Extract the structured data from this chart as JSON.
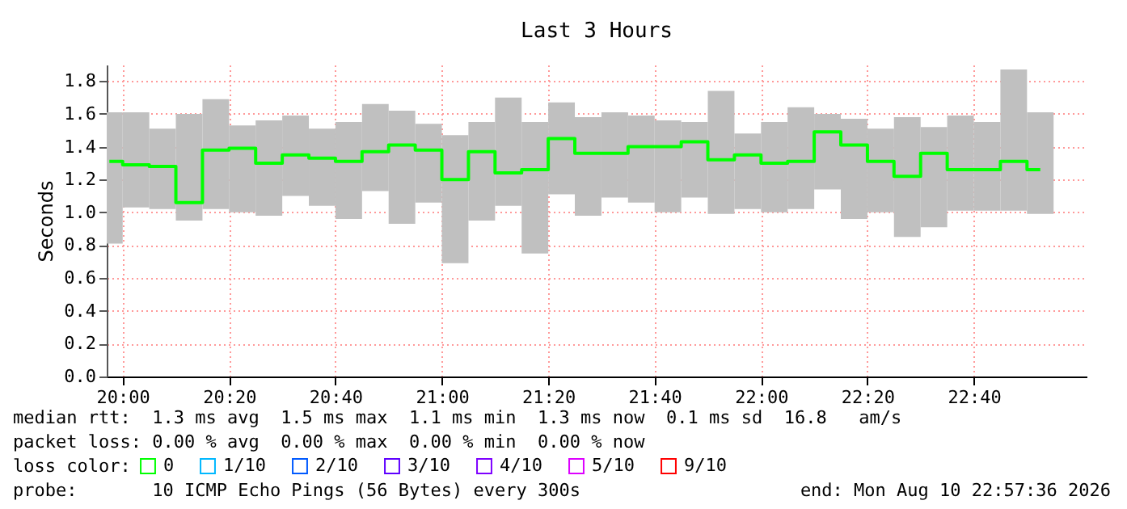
{
  "chart_data": {
    "type": "bar",
    "title": "Last 3 Hours",
    "ylabel": "Seconds",
    "legend_title": "loss color:",
    "x": [
      19.9583,
      20.0417,
      20.125,
      20.2083,
      20.2917,
      20.375,
      20.4583,
      20.5417,
      20.625,
      20.7083,
      20.7917,
      20.875,
      20.9583,
      21.0417,
      21.125,
      21.2083,
      21.2917,
      21.375,
      21.4583,
      21.5417,
      21.625,
      21.7083,
      21.7917,
      21.875,
      21.9583,
      22.0417,
      22.125,
      22.2083,
      22.2917,
      22.375,
      22.4583,
      22.5417,
      22.625,
      22.7083,
      22.7917,
      22.875
    ],
    "series": [
      {
        "color": "#c0c0c0",
        "base": [
          0.81,
          1.03,
          1.02,
          0.95,
          1.02,
          1.0,
          0.98,
          1.1,
          1.04,
          0.96,
          1.13,
          0.93,
          1.06,
          0.69,
          0.95,
          1.04,
          0.75,
          1.11,
          0.98,
          1.09,
          1.06,
          1.0,
          1.09,
          0.99,
          1.02,
          1.0,
          1.02,
          1.14,
          0.96,
          1.0,
          0.85,
          0.91,
          1.01,
          1.01,
          1.01,
          0.99
        ],
        "values": [
          0.8,
          0.58,
          0.49,
          0.65,
          0.67,
          0.53,
          0.58,
          0.49,
          0.47,
          0.59,
          0.53,
          0.69,
          0.48,
          0.78,
          0.6,
          0.66,
          0.8,
          0.56,
          0.6,
          0.52,
          0.53,
          0.56,
          0.46,
          0.75,
          0.46,
          0.55,
          0.62,
          0.46,
          0.61,
          0.51,
          0.73,
          0.61,
          0.58,
          0.54,
          0.86,
          0.62
        ]
      },
      {
        "type": "step",
        "name": "0",
        "color": "#00ff00",
        "values": [
          1.31,
          1.29,
          1.28,
          1.06,
          1.38,
          1.39,
          1.3,
          1.35,
          1.33,
          1.31,
          1.37,
          1.41,
          1.38,
          1.2,
          1.37,
          1.24,
          1.26,
          1.45,
          1.36,
          1.36,
          1.4,
          1.4,
          1.43,
          1.32,
          1.35,
          1.3,
          1.31,
          1.49,
          1.41,
          1.31,
          1.22,
          1.36,
          1.26,
          1.26,
          1.31,
          1.26
        ]
      },
      {
        "type": "step",
        "name": "1/10",
        "color": "#00b8ff",
        "values": [
          null,
          null,
          null,
          null,
          null,
          null,
          null,
          null,
          null,
          null,
          null,
          null,
          null,
          null,
          null,
          null,
          null,
          null,
          null,
          null,
          null,
          null,
          null,
          null,
          null,
          null,
          null,
          null,
          null,
          null,
          null,
          null,
          null,
          null,
          null,
          null
        ]
      },
      {
        "type": "step",
        "name": "2/10",
        "color": "#0059ff",
        "values": [
          null,
          null,
          null,
          null,
          null,
          null,
          null,
          null,
          null,
          null,
          null,
          null,
          null,
          null,
          null,
          null,
          null,
          null,
          null,
          null,
          null,
          null,
          null,
          null,
          null,
          null,
          null,
          null,
          null,
          null,
          null,
          null,
          null,
          null,
          null,
          null
        ]
      },
      {
        "type": "step",
        "name": "3/10",
        "color": "#5e00ff",
        "values": [
          null,
          null,
          null,
          null,
          null,
          null,
          null,
          null,
          null,
          null,
          null,
          null,
          null,
          null,
          null,
          null,
          null,
          null,
          null,
          null,
          null,
          null,
          null,
          null,
          null,
          null,
          null,
          null,
          null,
          null,
          null,
          null,
          null,
          null,
          null,
          null
        ]
      },
      {
        "type": "step",
        "name": "4/10",
        "color": "#7e00ff",
        "values": [
          null,
          null,
          null,
          null,
          null,
          null,
          null,
          null,
          null,
          null,
          null,
          null,
          null,
          null,
          null,
          null,
          null,
          null,
          null,
          null,
          null,
          null,
          null,
          null,
          null,
          null,
          null,
          null,
          null,
          null,
          null,
          null,
          null,
          null,
          null,
          null
        ]
      },
      {
        "type": "step",
        "name": "5/10",
        "color": "#dd00ff",
        "values": [
          null,
          null,
          null,
          null,
          null,
          null,
          null,
          null,
          null,
          null,
          null,
          null,
          null,
          null,
          null,
          null,
          null,
          null,
          null,
          null,
          null,
          null,
          null,
          null,
          null,
          null,
          null,
          null,
          null,
          null,
          null,
          null,
          null,
          null,
          null,
          null
        ]
      },
      {
        "type": "step",
        "name": "9/10",
        "color": "#ff0000",
        "values": [
          null,
          null,
          null,
          null,
          null,
          null,
          null,
          null,
          null,
          null,
          null,
          null,
          null,
          null,
          null,
          null,
          null,
          null,
          null,
          null,
          null,
          null,
          null,
          null,
          null,
          null,
          null,
          null,
          null,
          null,
          null,
          null,
          null,
          null,
          null,
          null
        ]
      }
    ],
    "xlim": [
      19.95,
      23.02
    ],
    "xticks": [
      {
        "value": 20,
        "label": "20:00"
      },
      {
        "value": 20.3333,
        "label": "20:20"
      },
      {
        "value": 20.6667,
        "label": "20:40"
      },
      {
        "value": 21,
        "label": "21:00"
      },
      {
        "value": 21.3333,
        "label": "21:20"
      },
      {
        "value": 21.6667,
        "label": "21:40"
      },
      {
        "value": 22,
        "label": "22:00"
      },
      {
        "value": 22.3333,
        "label": "22:20"
      },
      {
        "value": 22.6667,
        "label": "22:40"
      }
    ],
    "ylim": [
      0,
      1.9
    ],
    "yticks": [
      {
        "value": 0,
        "label": "0.0"
      },
      0.2,
      0.4,
      0.6,
      0.8,
      {
        "value": 1,
        "label": "1.0"
      },
      1.2,
      1.4,
      1.6,
      1.8
    ],
    "grid": true,
    "legend": "bottom",
    "annotations": [
      "median rtt:  1.3 ms avg  1.5 ms max  1.1 ms min  1.3 ms now  0.1 ms sd  16.8   am/s",
      "packet loss: 0.00 % avg  0.00 % max  0.00 % min  0.00 % now",
      "probe:       10 ICMP Echo Pings (56 Bytes) every 300s",
      "end: Mon Aug 10 22:57:36 2026"
    ]
  }
}
